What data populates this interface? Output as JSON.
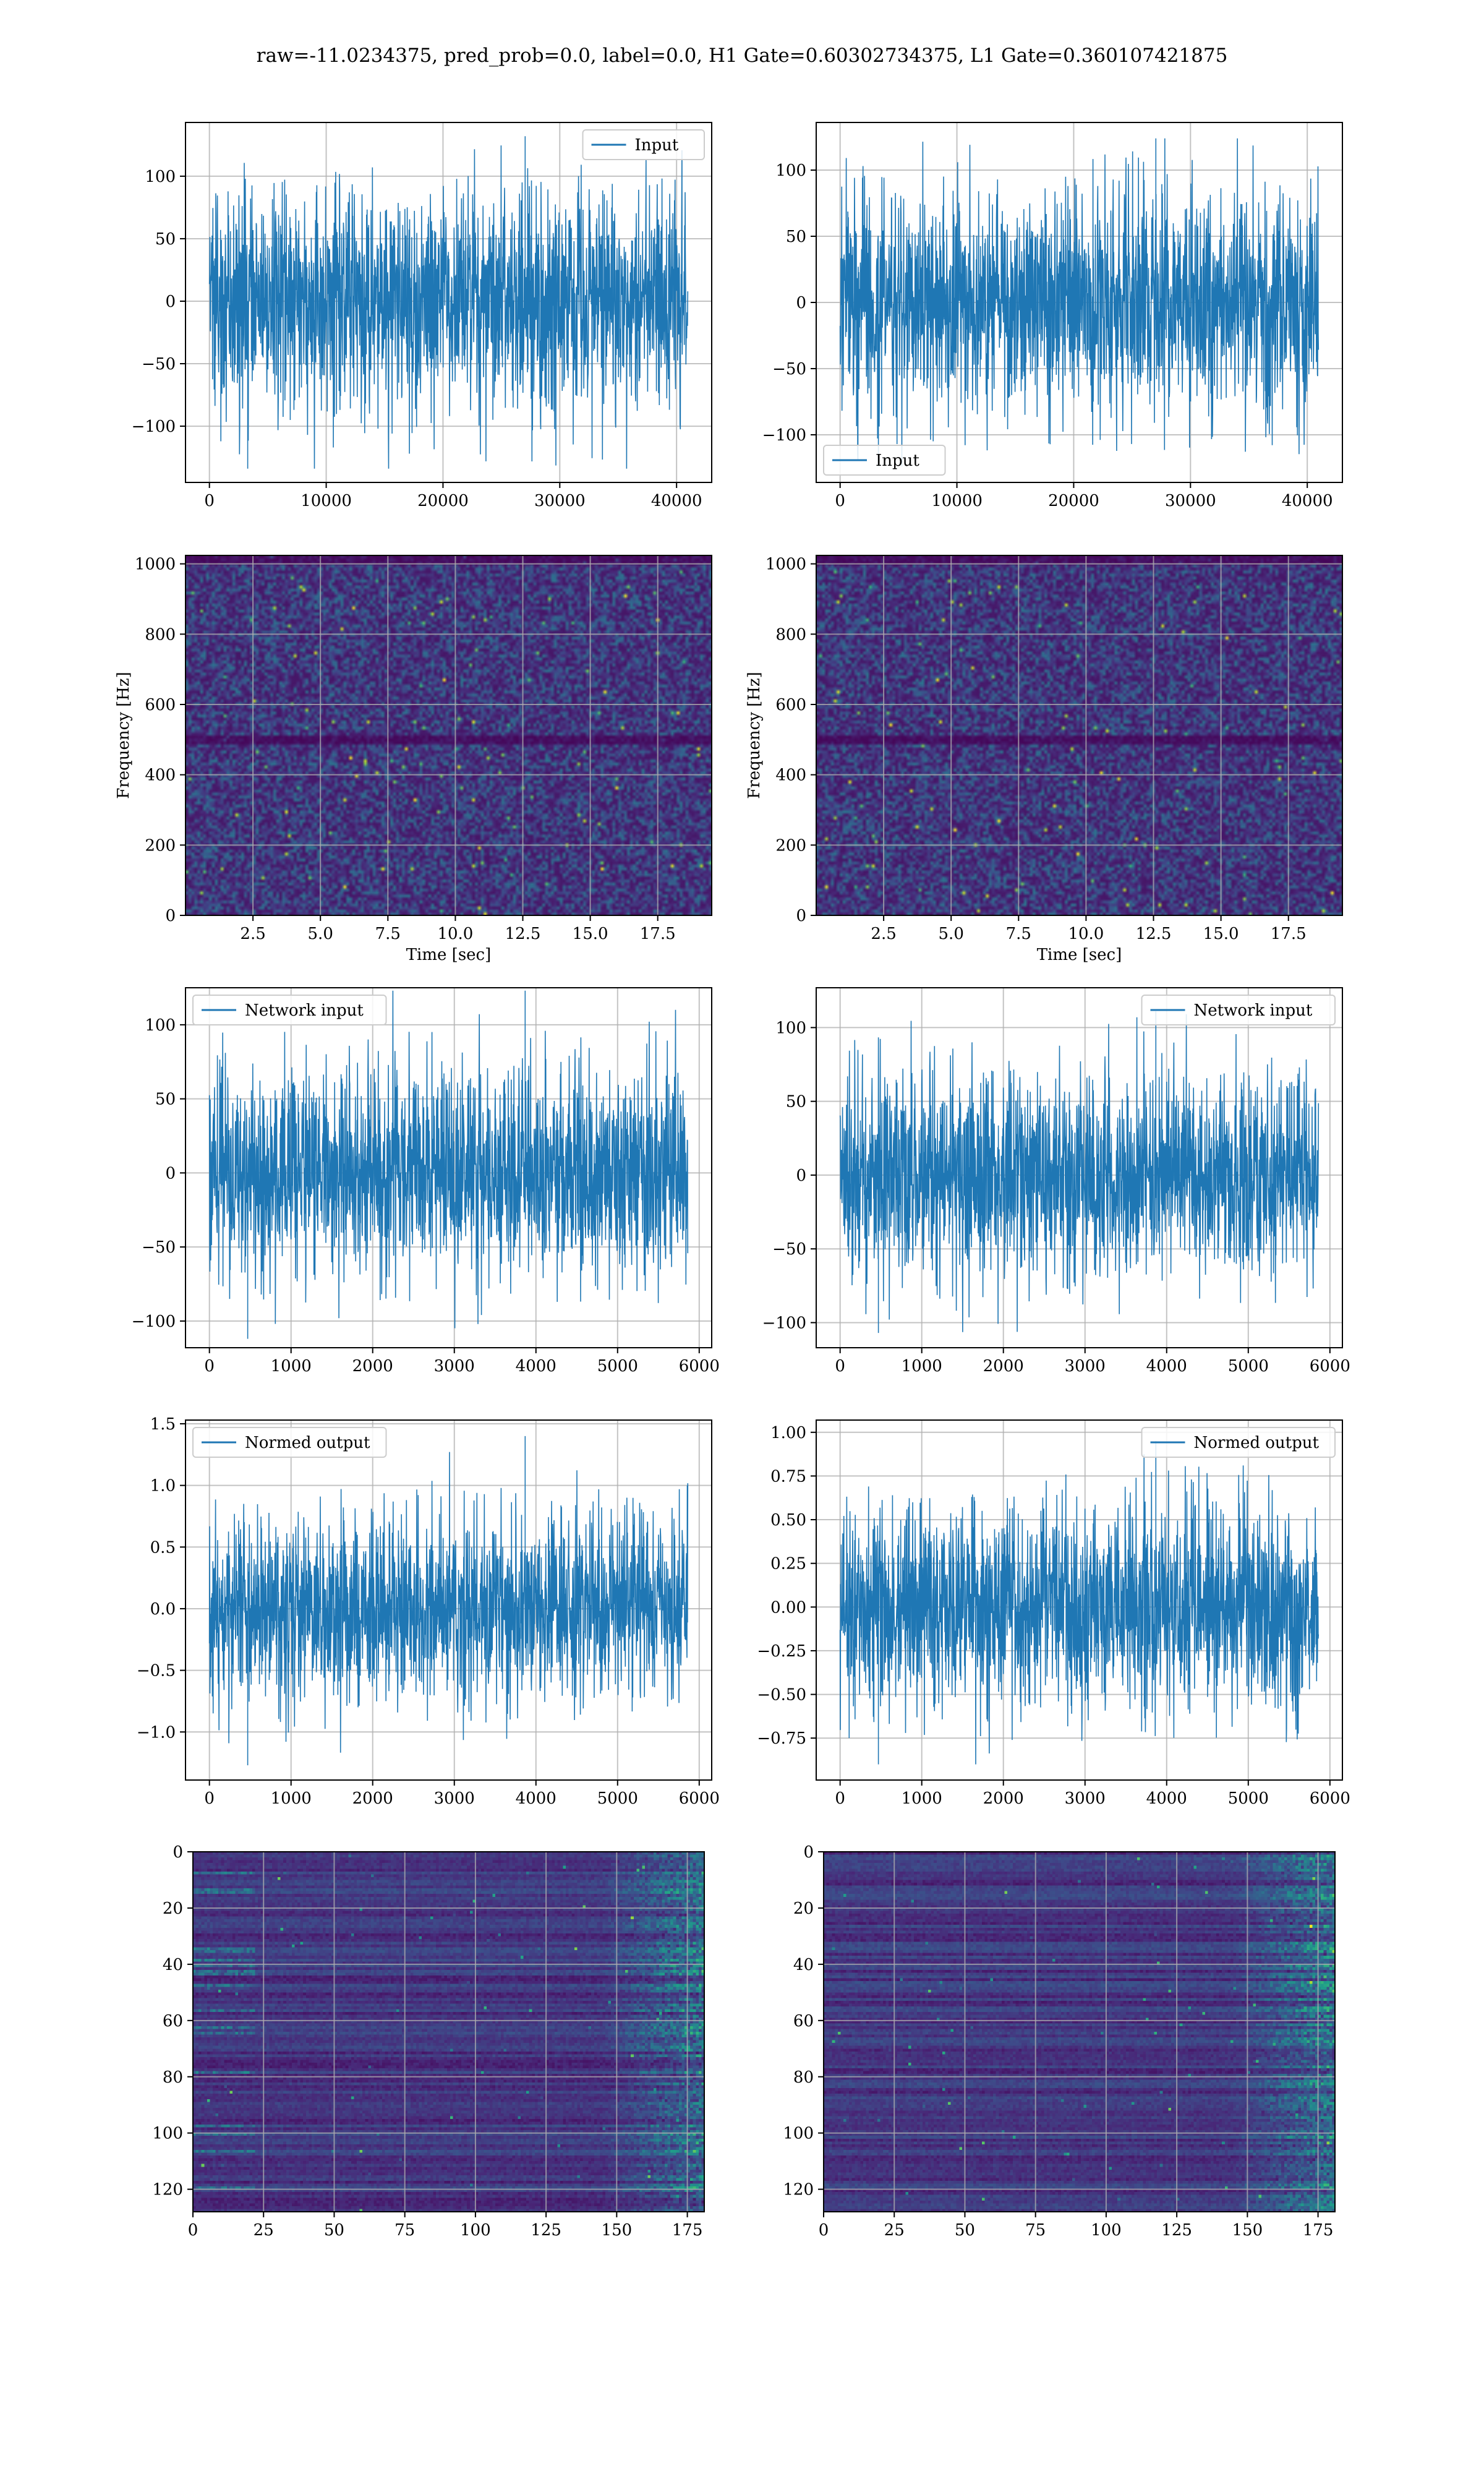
{
  "figure": {
    "suptitle": "raw=-11.0234375, pred_prob=0.0, label=0.0, H1 Gate=0.60302734375, L1 Gate=0.360107421875",
    "line_color": "#1f77b4",
    "grid_color": "#b0b0b0",
    "colormap": "viridis",
    "background": "#ffffff"
  },
  "chart_data": [
    {
      "id": "input-h1",
      "type": "line",
      "title": "",
      "xlabel": "",
      "ylabel": "",
      "x_range": [
        0,
        40960
      ],
      "xlim": [
        -2048,
        43008
      ],
      "ylim": [
        -145,
        143
      ],
      "xticks": [
        0,
        10000,
        20000,
        30000,
        40000
      ],
      "xtick_labels": [
        "0",
        "10000",
        "20000",
        "30000",
        "40000"
      ],
      "yticks": [
        -100,
        -50,
        0,
        50,
        100
      ],
      "ytick_labels": [
        "−100",
        "−50",
        "0",
        "50",
        "100"
      ],
      "series": [
        {
          "name": "Input",
          "amplitude": 48,
          "peak_max": 132,
          "peak_min": -134
        }
      ],
      "legend": {
        "location": "upper right",
        "entries": [
          "Input"
        ]
      },
      "grid": true
    },
    {
      "id": "input-l1",
      "type": "line",
      "title": "",
      "xlabel": "",
      "ylabel": "",
      "x_range": [
        0,
        40960
      ],
      "xlim": [
        -2048,
        43008
      ],
      "ylim": [
        -136,
        136
      ],
      "xticks": [
        0,
        10000,
        20000,
        30000,
        40000
      ],
      "xtick_labels": [
        "0",
        "10000",
        "20000",
        "30000",
        "40000"
      ],
      "yticks": [
        -100,
        -50,
        0,
        50,
        100
      ],
      "ytick_labels": [
        "−100",
        "−50",
        "0",
        "50",
        "100"
      ],
      "series": [
        {
          "name": "Input",
          "amplitude": 46,
          "peak_max": 124,
          "peak_min": -124
        }
      ],
      "legend": {
        "location": "lower left",
        "entries": [
          "Input"
        ]
      },
      "grid": true
    },
    {
      "id": "spectrogram-h1",
      "type": "heatmap",
      "title": "",
      "xlabel": "Time [sec]",
      "ylabel": "Frequency [Hz]",
      "xlim": [
        0.0,
        19.5
      ],
      "ylim": [
        0,
        1024
      ],
      "xticks": [
        2.5,
        5.0,
        7.5,
        10.0,
        12.5,
        15.0,
        17.5
      ],
      "xtick_labels": [
        "2.5",
        "5.0",
        "7.5",
        "10.0",
        "12.5",
        "15.0",
        "17.5"
      ],
      "yticks": [
        0,
        200,
        400,
        600,
        800,
        1000
      ],
      "ytick_labels": [
        "0",
        "200",
        "400",
        "600",
        "800",
        "1000"
      ],
      "grid": true,
      "colormap": "viridis",
      "dark_bands_hz": [
        500,
        1000
      ]
    },
    {
      "id": "spectrogram-l1",
      "type": "heatmap",
      "title": "",
      "xlabel": "Time [sec]",
      "ylabel": "Frequency [Hz]",
      "xlim": [
        0.0,
        19.5
      ],
      "ylim": [
        0,
        1024
      ],
      "xticks": [
        2.5,
        5.0,
        7.5,
        10.0,
        12.5,
        15.0,
        17.5
      ],
      "xtick_labels": [
        "2.5",
        "5.0",
        "7.5",
        "10.0",
        "12.5",
        "15.0",
        "17.5"
      ],
      "yticks": [
        0,
        200,
        400,
        600,
        800,
        1000
      ],
      "ytick_labels": [
        "0",
        "200",
        "400",
        "600",
        "800",
        "1000"
      ],
      "grid": true,
      "colormap": "viridis",
      "dark_bands_hz": [
        500,
        1000
      ]
    },
    {
      "id": "network-input-h1",
      "type": "line",
      "title": "",
      "xlabel": "",
      "ylabel": "",
      "x_range": [
        0,
        5860
      ],
      "xlim": [
        -293,
        6153
      ],
      "ylim": [
        -118,
        125
      ],
      "xticks": [
        0,
        1000,
        2000,
        3000,
        4000,
        5000,
        6000
      ],
      "xtick_labels": [
        "0",
        "1000",
        "2000",
        "3000",
        "4000",
        "5000",
        "6000"
      ],
      "yticks": [
        -100,
        -50,
        0,
        50,
        100
      ],
      "ytick_labels": [
        "−100",
        "−50",
        "0",
        "50",
        "100"
      ],
      "series": [
        {
          "name": "Network input",
          "amplitude": 38,
          "peak_max": 123,
          "peak_min": -112
        }
      ],
      "legend": {
        "location": "upper left",
        "entries": [
          "Network input"
        ]
      },
      "grid": true
    },
    {
      "id": "network-input-l1",
      "type": "line",
      "title": "",
      "xlabel": "",
      "ylabel": "",
      "x_range": [
        0,
        5860
      ],
      "xlim": [
        -293,
        6153
      ],
      "ylim": [
        -117,
        127
      ],
      "xticks": [
        0,
        1000,
        2000,
        3000,
        4000,
        5000,
        6000
      ],
      "xtick_labels": [
        "0",
        "1000",
        "2000",
        "3000",
        "4000",
        "5000",
        "6000"
      ],
      "yticks": [
        -100,
        -50,
        0,
        50,
        100
      ],
      "ytick_labels": [
        "−100",
        "−50",
        "0",
        "50",
        "100"
      ],
      "series": [
        {
          "name": "Network input",
          "amplitude": 36,
          "peak_max": 111,
          "peak_min": -107
        }
      ],
      "legend": {
        "location": "upper right",
        "entries": [
          "Network input"
        ]
      },
      "grid": true
    },
    {
      "id": "normed-output-h1",
      "type": "line",
      "title": "",
      "xlabel": "",
      "ylabel": "",
      "x_range": [
        0,
        5860
      ],
      "xlim": [
        -293,
        6153
      ],
      "ylim": [
        -1.39,
        1.53
      ],
      "xticks": [
        0,
        1000,
        2000,
        3000,
        4000,
        5000,
        6000
      ],
      "xtick_labels": [
        "0",
        "1000",
        "2000",
        "3000",
        "4000",
        "5000",
        "6000"
      ],
      "yticks": [
        -1.0,
        -0.5,
        0.0,
        0.5,
        1.0,
        1.5
      ],
      "ytick_labels": [
        "−1.0",
        "−0.5",
        "0.0",
        "0.5",
        "1.0",
        "1.5"
      ],
      "series": [
        {
          "name": "Normed output",
          "amplitude": 0.42,
          "peak_max": 1.4,
          "peak_min": -1.27
        }
      ],
      "legend": {
        "location": "upper left",
        "entries": [
          "Normed output"
        ]
      },
      "grid": true
    },
    {
      "id": "normed-output-l1",
      "type": "line",
      "title": "",
      "xlabel": "",
      "ylabel": "",
      "x_range": [
        0,
        5860
      ],
      "xlim": [
        -293,
        6153
      ],
      "ylim": [
        -0.99,
        1.07
      ],
      "xticks": [
        0,
        1000,
        2000,
        3000,
        4000,
        5000,
        6000
      ],
      "xtick_labels": [
        "0",
        "1000",
        "2000",
        "3000",
        "4000",
        "5000",
        "6000"
      ],
      "yticks": [
        -0.75,
        -0.5,
        -0.25,
        0.0,
        0.25,
        0.5,
        0.75,
        1.0
      ],
      "ytick_labels": [
        "−0.75",
        "−0.50",
        "−0.25",
        "0.00",
        "0.25",
        "0.50",
        "0.75",
        "1.00"
      ],
      "series": [
        {
          "name": "Normed output",
          "amplitude": 0.31,
          "peak_max": 0.95,
          "peak_min": -0.9
        }
      ],
      "legend": {
        "location": "upper right",
        "entries": [
          "Normed output"
        ]
      },
      "grid": true
    },
    {
      "id": "feature-map-h1",
      "type": "heatmap",
      "title": "",
      "xlabel": "",
      "ylabel": "",
      "xlim": [
        0,
        181
      ],
      "ylim": [
        128,
        0
      ],
      "y_inverted": true,
      "xticks": [
        0,
        25,
        50,
        75,
        100,
        125,
        150,
        175
      ],
      "xtick_labels": [
        "0",
        "25",
        "50",
        "75",
        "100",
        "125",
        "150",
        "175"
      ],
      "yticks": [
        0,
        20,
        40,
        60,
        80,
        100,
        120
      ],
      "ytick_labels": [
        "0",
        "20",
        "40",
        "60",
        "80",
        "100",
        "120"
      ],
      "rows": 128,
      "cols": 181,
      "grid": true,
      "colormap": "viridis"
    },
    {
      "id": "feature-map-l1",
      "type": "heatmap",
      "title": "",
      "xlabel": "",
      "ylabel": "",
      "xlim": [
        0,
        181
      ],
      "ylim": [
        128,
        0
      ],
      "y_inverted": true,
      "xticks": [
        0,
        25,
        50,
        75,
        100,
        125,
        150,
        175
      ],
      "xtick_labels": [
        "0",
        "25",
        "50",
        "75",
        "100",
        "125",
        "150",
        "175"
      ],
      "yticks": [
        0,
        20,
        40,
        60,
        80,
        100,
        120
      ],
      "ytick_labels": [
        "0",
        "20",
        "40",
        "60",
        "80",
        "100",
        "120"
      ],
      "rows": 128,
      "cols": 181,
      "grid": true,
      "colormap": "viridis"
    }
  ]
}
